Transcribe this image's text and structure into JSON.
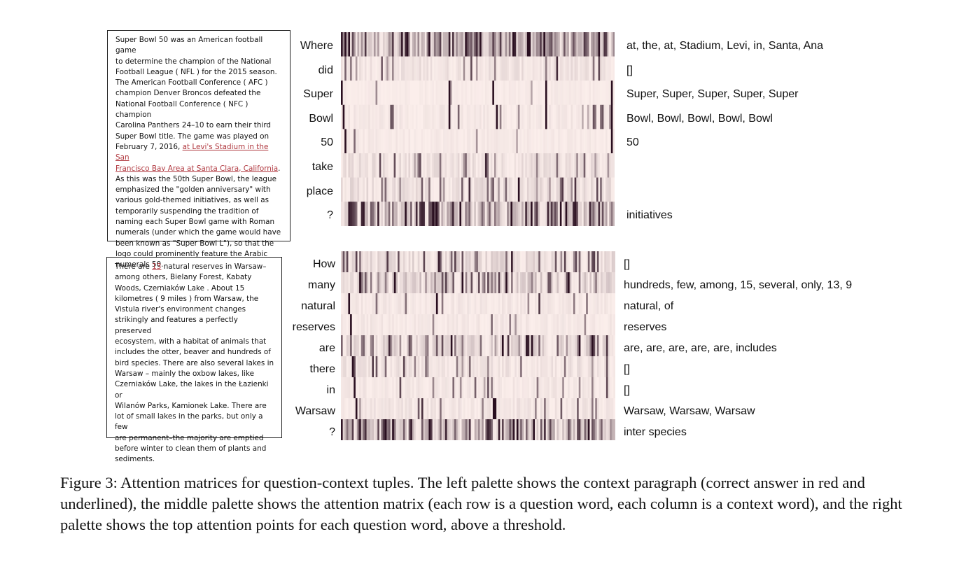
{
  "panel1": {
    "context_before": "Super Bowl 50 was an American football game\nto determine the champion of the National\nFootball League ( NFL ) for the 2015 season.\nThe American Football Conference ( AFC )\nchampion Denver Broncos defeated the\nNational Football Conference ( NFC ) champion\nCarolina Panthers 24–10 to earn their third\nSuper Bowl title. The game was played on\nFebruary 7, 2016, ",
    "context_answer": "at Levi's Stadium in the San\nFrancisco Bay Area at Santa Clara, California",
    "context_after": ".\nAs this was the 50th Super Bowl, the league\nemphasized the \"golden anniversary\" with\nvarious gold-themed initiatives, as well as\ntemporarily suspending the tradition of\nnaming each Super Bowl game with Roman\nnumerals (under which the game would have\nbeen known as \"Super Bowl L\"), so that the\nlogo could prominently feature the Arabic\nnumerals 50.",
    "questions": [
      "Where",
      "did",
      "Super",
      "Bowl",
      "50",
      "take",
      "place",
      "?"
    ],
    "top_attention": [
      "at, the, at, Stadium, Levi, in, Santa, Ana",
      "[]",
      "Super, Super, Super, Super, Super",
      "Bowl, Bowl, Bowl, Bowl, Bowl",
      "50",
      "",
      "",
      "initiatives"
    ]
  },
  "panel2": {
    "context_before": "There are ",
    "context_answer": "13",
    "context_after": " natural reserves in Warsaw–\namong others, Bielany Forest, Kabaty\nWoods, Czerniaków Lake . About 15\nkilometres ( 9 miles ) from Warsaw, the\nVistula river's environment changes\nstrikingly and features a perfectly preserved\necosystem, with a habitat of animals that\nincludes the otter, beaver and hundreds of\nbird species. There are also several lakes in\nWarsaw – mainly the oxbow lakes, like\nCzerniaków Lake, the lakes in the Łazienki or\nWilanów Parks, Kamionek Lake. There are\nlot of small lakes in the parks, but only a few\nare permanent–the majority are emptied\nbefore winter to clean them of plants and\nsediments.",
    "questions": [
      "How",
      "many",
      "natural",
      "reserves",
      "are",
      "there",
      "in",
      "Warsaw",
      "?"
    ],
    "top_attention": [
      "[]",
      "hundreds, few, among, 15, several, only, 13, 9",
      "natural, of",
      "reserves",
      "are, are, are, are, are, includes",
      "[]",
      "[]",
      "Warsaw, Warsaw, Warsaw",
      "inter species"
    ]
  },
  "caption": "Figure 3: Attention matrices for question-context tuples. The left palette shows the context paragraph (correct answer in red and underlined), the middle palette shows the attention matrix (each row is a question word, each column is a context word), and the right palette shows the top attention points for each question word, above a threshold.",
  "colors": {
    "heat_low": "#fbeeeb",
    "heat_high": "#2a0f20",
    "answer": "#b0383f"
  }
}
